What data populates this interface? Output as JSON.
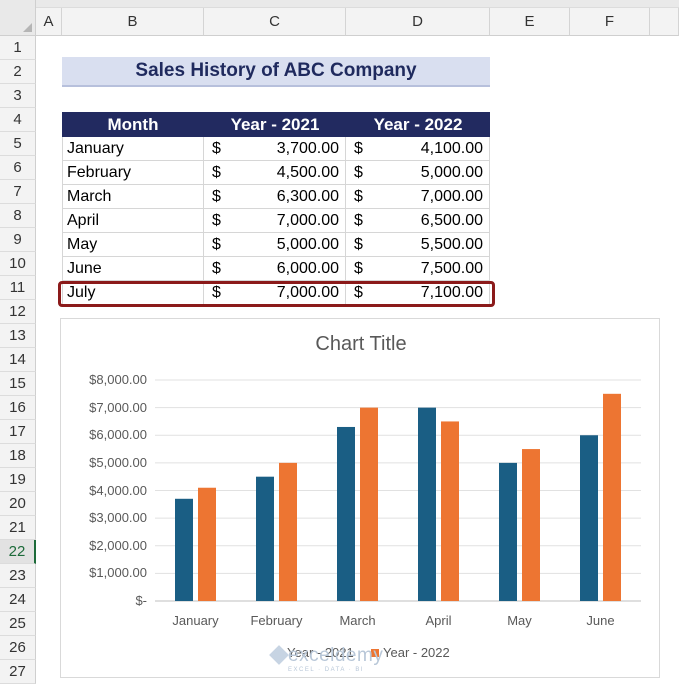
{
  "columns": [
    "A",
    "B",
    "C",
    "D",
    "E",
    "F"
  ],
  "rows": [
    "1",
    "2",
    "3",
    "4",
    "5",
    "6",
    "7",
    "8",
    "9",
    "10",
    "11",
    "12",
    "13",
    "14",
    "15",
    "16",
    "17",
    "18",
    "19",
    "20",
    "21",
    "22",
    "23",
    "24",
    "25",
    "26",
    "27"
  ],
  "active_row": "22",
  "title": "Sales History of ABC Company",
  "table": {
    "headers": [
      "Month",
      "Year - 2021",
      "Year - 2022"
    ],
    "currency_symbol": "$",
    "rows": [
      {
        "month": "January",
        "y2021": "3,700.00",
        "y2022": "4,100.00"
      },
      {
        "month": "February",
        "y2021": "4,500.00",
        "y2022": "5,000.00"
      },
      {
        "month": "March",
        "y2021": "6,300.00",
        "y2022": "7,000.00"
      },
      {
        "month": "April",
        "y2021": "7,000.00",
        "y2022": "6,500.00"
      },
      {
        "month": "May",
        "y2021": "5,000.00",
        "y2022": "5,500.00"
      },
      {
        "month": "June",
        "y2021": "6,000.00",
        "y2022": "7,500.00"
      },
      {
        "month": "July",
        "y2021": "7,000.00",
        "y2022": "7,100.00"
      }
    ],
    "highlighted_row": 6,
    "highlight_color": "#8b1a1a",
    "header_color": "#222a60",
    "title_fill": "#d9dff0"
  },
  "chart_data": {
    "type": "bar",
    "title": "Chart Title",
    "categories": [
      "January",
      "February",
      "March",
      "April",
      "May",
      "June"
    ],
    "series": [
      {
        "name": "Year - 2021",
        "values": [
          3700,
          4500,
          6300,
          7000,
          5000,
          6000
        ],
        "color": "#1a5e84"
      },
      {
        "name": "Year - 2022",
        "values": [
          4100,
          5000,
          7000,
          6500,
          5500,
          7500
        ],
        "color": "#ed7532"
      }
    ],
    "ylim": [
      0,
      8000
    ],
    "yticks": [
      0,
      1000,
      2000,
      3000,
      4000,
      5000,
      6000,
      7000,
      8000
    ],
    "ytick_labels": [
      "$-",
      "$1,000.00",
      "$2,000.00",
      "$3,000.00",
      "$4,000.00",
      "$5,000.00",
      "$6,000.00",
      "$7,000.00",
      "$8,000.00"
    ],
    "grid": true,
    "legend_position": "bottom"
  },
  "watermark": {
    "name": "exceldemy",
    "tagline": "EXCEL · DATA · BI"
  }
}
